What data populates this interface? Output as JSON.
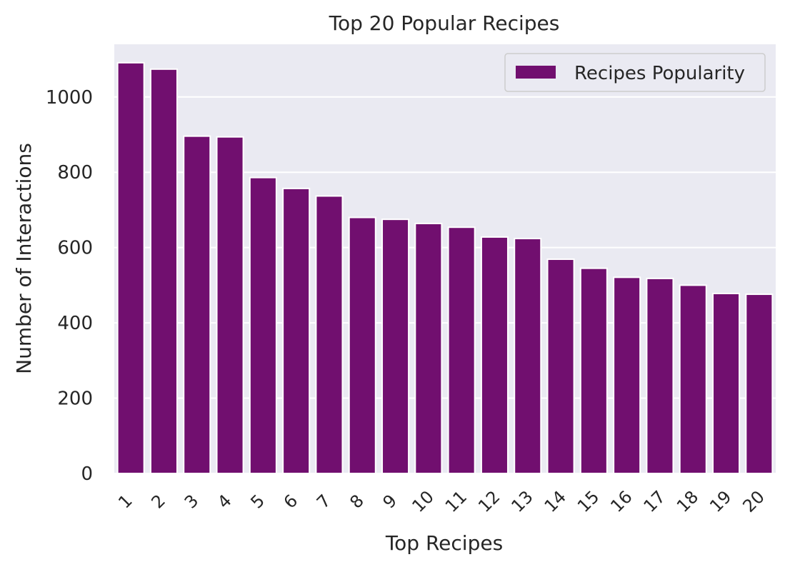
{
  "chart_data": {
    "type": "bar",
    "title": "Top 20 Popular Recipes",
    "xlabel": "Top Recipes",
    "ylabel": "Number of Interactions",
    "categories": [
      "1",
      "2",
      "3",
      "4",
      "5",
      "6",
      "7",
      "8",
      "9",
      "10",
      "11",
      "12",
      "13",
      "14",
      "15",
      "16",
      "17",
      "18",
      "19",
      "20"
    ],
    "series": [
      {
        "name": "Recipes Popularity",
        "values": [
          1091,
          1074,
          896,
          894,
          786,
          757,
          737,
          680,
          675,
          664,
          654,
          628,
          624,
          569,
          545,
          521,
          518,
          500,
          478,
          476
        ]
      }
    ],
    "ylim": [
      0,
      1140
    ],
    "yticks": [
      0,
      200,
      400,
      600,
      800,
      1000
    ],
    "grid": true,
    "legend_position": "top-right",
    "colors": {
      "bar": "#710f6f",
      "bar_edge": "#ffffff",
      "plot_background": "#eaeaf2",
      "grid": "#ffffff",
      "text": "#262626"
    }
  }
}
